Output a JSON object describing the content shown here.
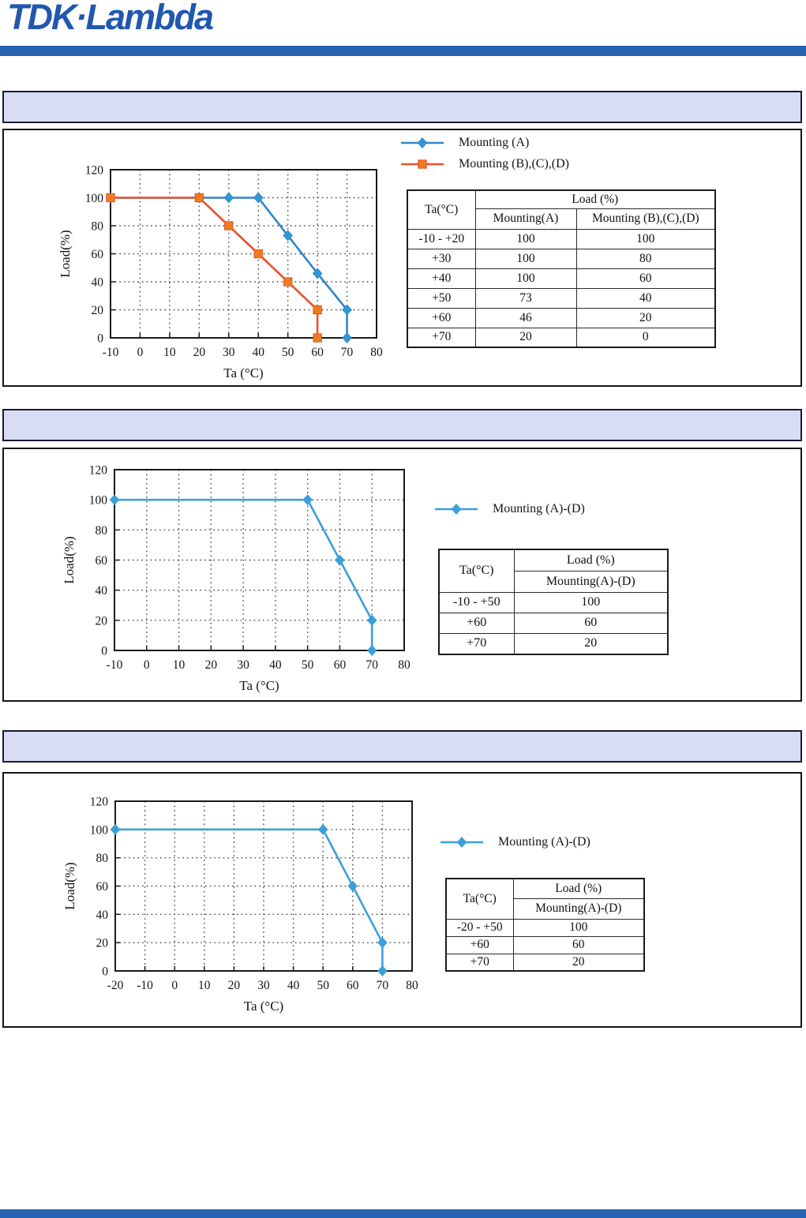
{
  "page": {
    "logo_text": "TDK·Lambda",
    "brand_color": "#2563b0",
    "section_header_fill": "#d8dcf4"
  },
  "sections": [
    {
      "header_title": "",
      "legend": [
        {
          "label": "Mounting (A)",
          "color": "#2f86c9",
          "marker": "diamond",
          "marker_fill": "#2f9ad2"
        },
        {
          "label": "Mounting (B),(C),(D)",
          "color": "#e8522c",
          "marker": "square",
          "marker_fill": "#ee7c1f"
        }
      ],
      "table": {
        "corner_header": "Ta(°C)",
        "group_header": "Load (%)",
        "columns": [
          "Mounting(A)",
          "Mounting (B),(C),(D)"
        ],
        "rows": [
          [
            "-10 - +20",
            "100",
            "100"
          ],
          [
            "+30",
            "100",
            "80"
          ],
          [
            "+40",
            "100",
            "60"
          ],
          [
            "+50",
            "73",
            "40"
          ],
          [
            "+60",
            "46",
            "20"
          ],
          [
            "+70",
            "20",
            "0"
          ]
        ]
      }
    },
    {
      "header_title": "",
      "legend": [
        {
          "label": "Mounting  (A)-(D)",
          "color": "#3aa0d8",
          "marker": "diamond",
          "marker_fill": "#3aa0d8"
        }
      ],
      "table": {
        "corner_header": "Ta(°C)",
        "group_header": "Load (%)",
        "columns": [
          "Mounting(A)-(D)"
        ],
        "rows": [
          [
            "-10 - +50",
            "100"
          ],
          [
            "+60",
            "60"
          ],
          [
            "+70",
            "20"
          ]
        ]
      }
    },
    {
      "header_title": "",
      "legend": [
        {
          "label": "Mounting  (A)-(D)",
          "color": "#3aa0d8",
          "marker": "diamond",
          "marker_fill": "#3aa0d8"
        }
      ],
      "table": {
        "corner_header": "Ta(°C)",
        "group_header": "Load (%)",
        "columns": [
          "Mounting(A)-(D)"
        ],
        "rows": [
          [
            "-20 - +50",
            "100"
          ],
          [
            "+60",
            "60"
          ],
          [
            "+70",
            "20"
          ]
        ]
      }
    }
  ],
  "chart_data": [
    {
      "type": "line",
      "title": "",
      "xlabel": "Ta (°C)",
      "ylabel": "Load(%)",
      "xlim": [
        -10,
        80
      ],
      "ylim": [
        0,
        120
      ],
      "xticks": [
        -10,
        0,
        10,
        20,
        30,
        40,
        50,
        60,
        70,
        80
      ],
      "yticks": [
        0,
        20,
        40,
        60,
        80,
        100,
        120
      ],
      "grid": "dotted",
      "legend_position": "top-right",
      "series": [
        {
          "name": "Mounting (A)",
          "color": "#2f86c9",
          "marker": "diamond",
          "marker_fill": "#2f9ad2",
          "points": [
            [
              -10,
              100
            ],
            [
              20,
              100
            ],
            [
              30,
              100
            ],
            [
              40,
              100
            ],
            [
              50,
              73
            ],
            [
              60,
              46
            ],
            [
              70,
              20
            ],
            [
              70,
              0
            ]
          ]
        },
        {
          "name": "Mounting (B),(C),(D)",
          "color": "#e8522c",
          "marker": "square",
          "marker_fill": "#ee7c1f",
          "points": [
            [
              -10,
              100
            ],
            [
              20,
              100
            ],
            [
              30,
              80
            ],
            [
              40,
              60
            ],
            [
              50,
              40
            ],
            [
              60,
              20
            ],
            [
              60,
              0
            ]
          ]
        }
      ]
    },
    {
      "type": "line",
      "title": "",
      "xlabel": "Ta (°C)",
      "ylabel": "Load(%)",
      "xlim": [
        -10,
        80
      ],
      "ylim": [
        0,
        120
      ],
      "xticks": [
        -10,
        0,
        10,
        20,
        30,
        40,
        50,
        60,
        70,
        80
      ],
      "yticks": [
        0,
        20,
        40,
        60,
        80,
        100,
        120
      ],
      "grid": "dotted",
      "legend_position": "right",
      "series": [
        {
          "name": "Mounting (A)-(D)",
          "color": "#3aa0d8",
          "marker": "diamond",
          "marker_fill": "#3aa0d8",
          "points": [
            [
              -10,
              100
            ],
            [
              50,
              100
            ],
            [
              60,
              60
            ],
            [
              70,
              20
            ],
            [
              70,
              0
            ]
          ]
        }
      ]
    },
    {
      "type": "line",
      "title": "",
      "xlabel": "Ta (°C)",
      "ylabel": "Load(%)",
      "xlim": [
        -20,
        80
      ],
      "ylim": [
        0,
        120
      ],
      "xticks": [
        -20,
        -10,
        0,
        10,
        20,
        30,
        40,
        50,
        60,
        70,
        80
      ],
      "yticks": [
        0,
        20,
        40,
        60,
        80,
        100,
        120
      ],
      "grid": "dotted",
      "legend_position": "right",
      "series": [
        {
          "name": "Mounting (A)-(D)",
          "color": "#3aa0d8",
          "marker": "diamond",
          "marker_fill": "#3aa0d8",
          "points": [
            [
              -20,
              100
            ],
            [
              50,
              100
            ],
            [
              60,
              60
            ],
            [
              70,
              20
            ],
            [
              70,
              0
            ]
          ]
        }
      ]
    }
  ]
}
